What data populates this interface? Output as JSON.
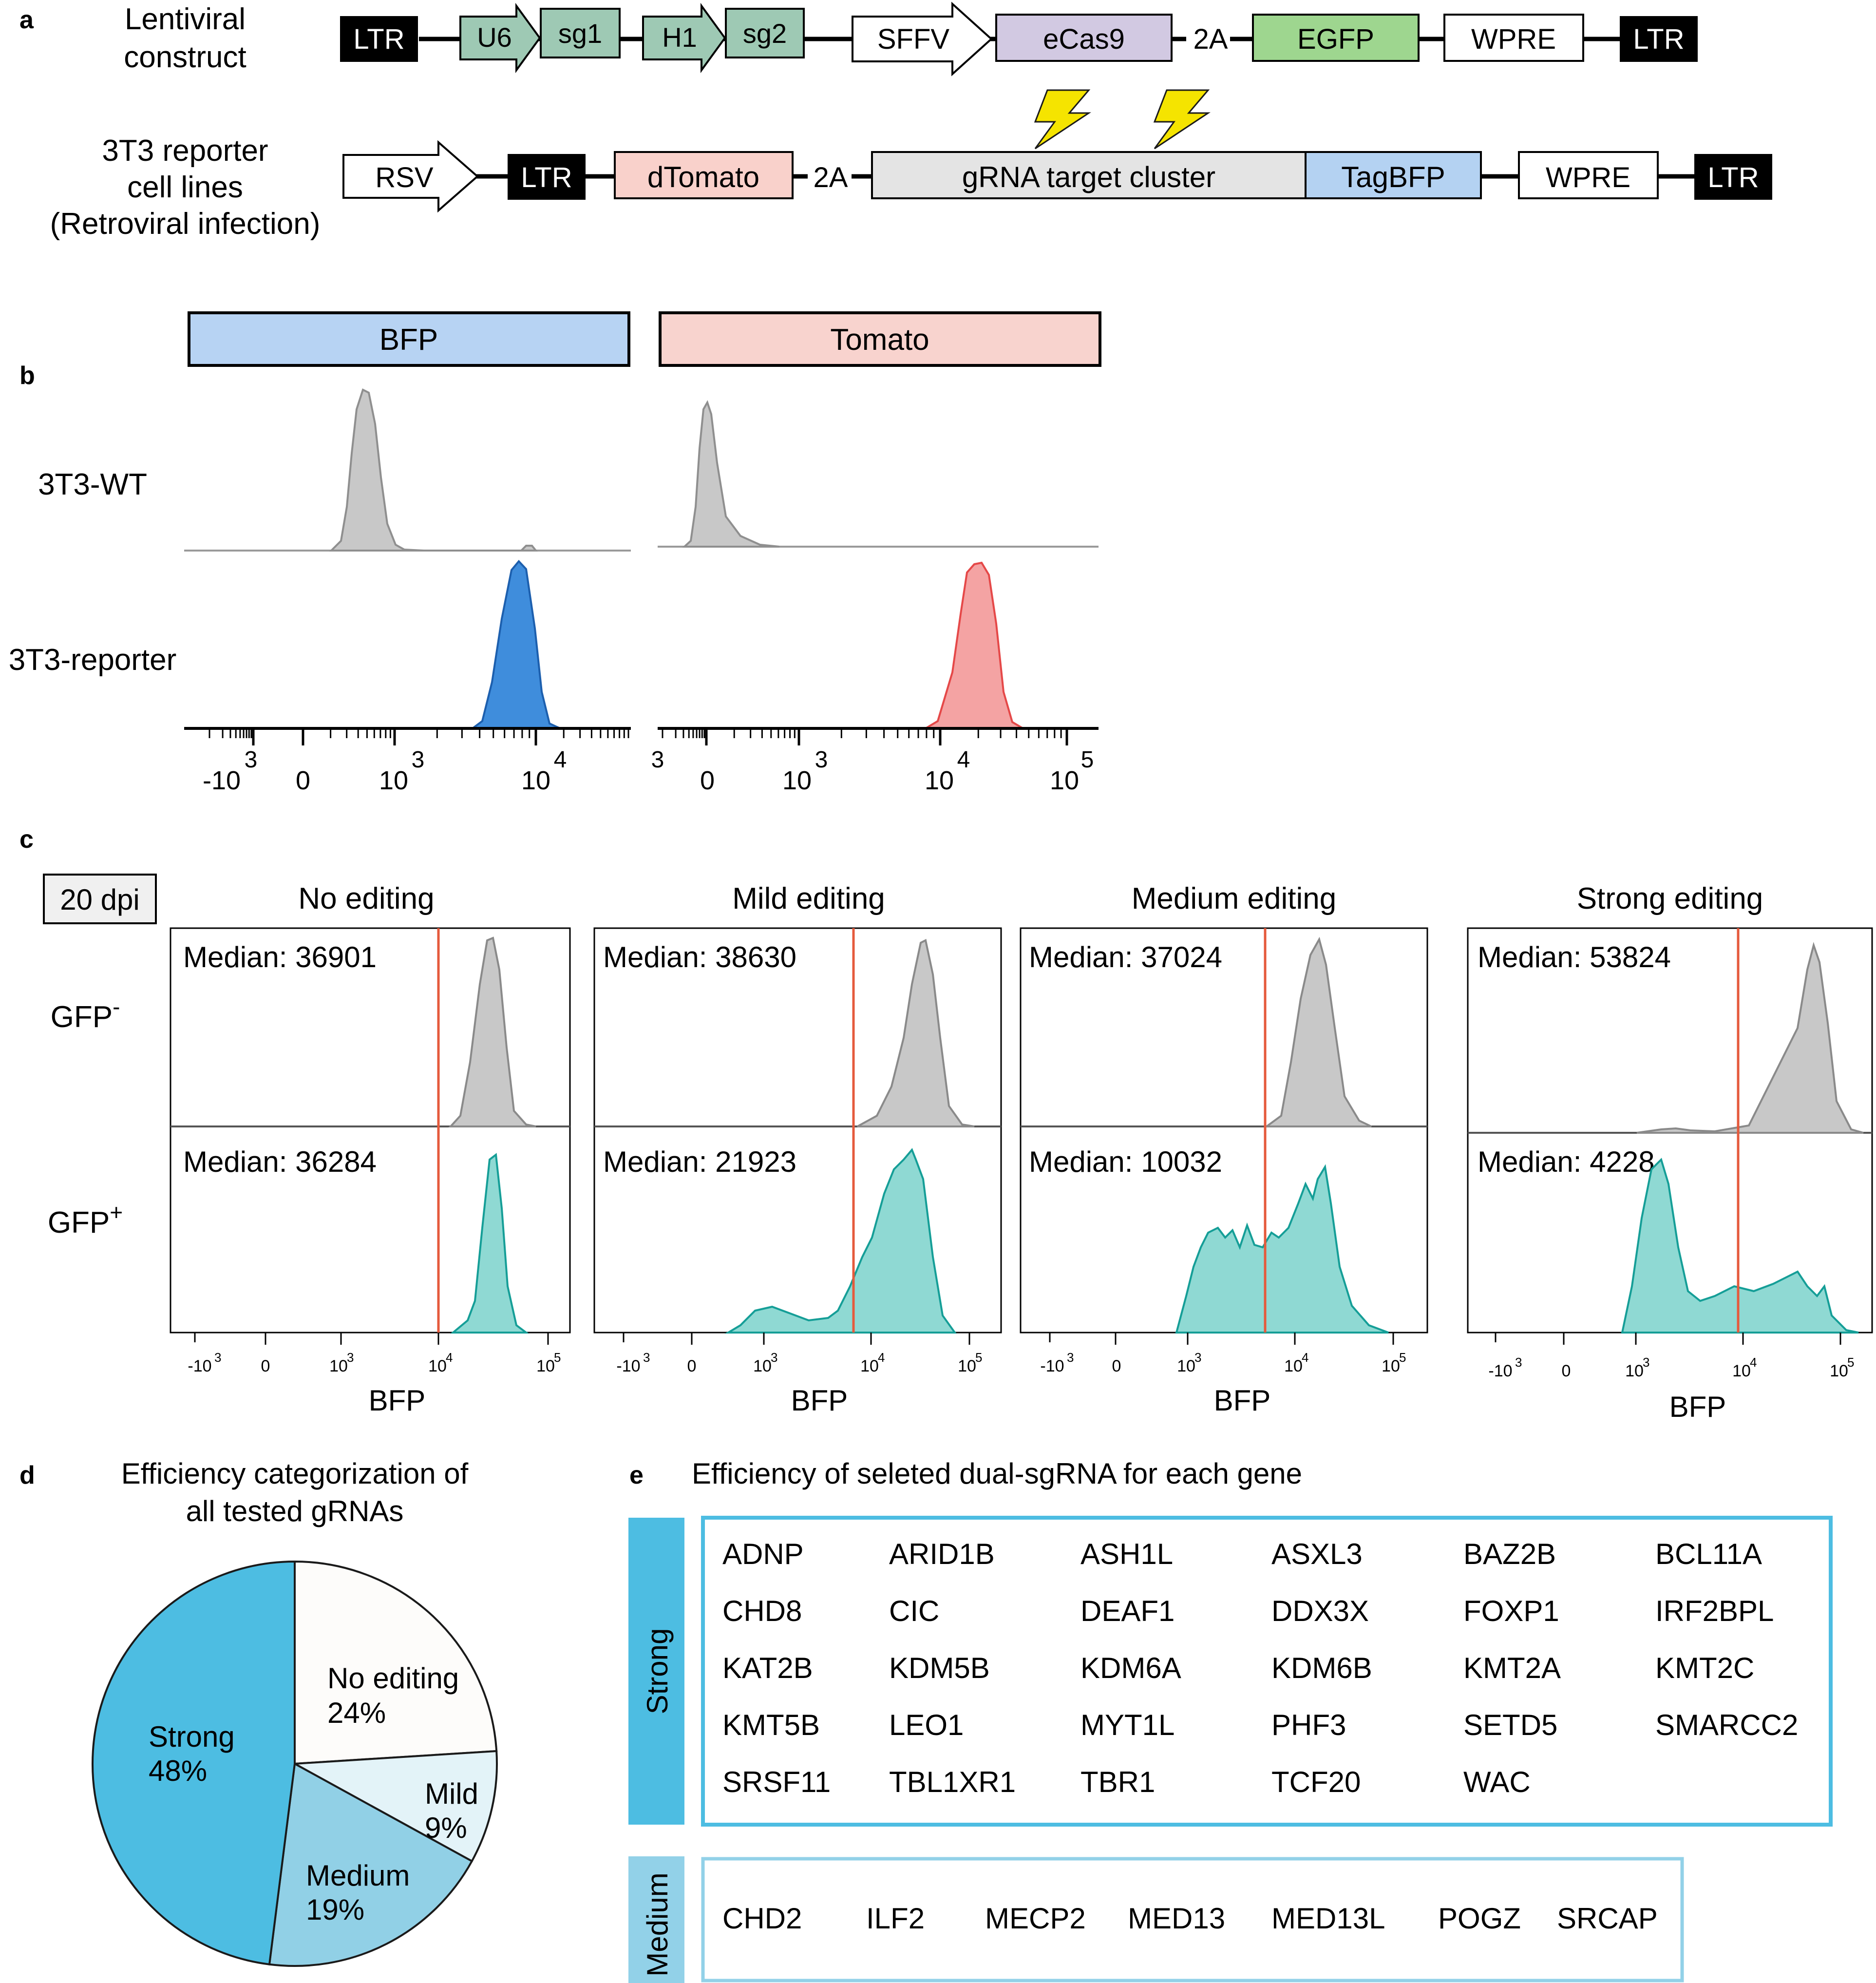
{
  "panel_a": {
    "label": "a",
    "row1": {
      "title": [
        "Lentiviral",
        "construct"
      ],
      "parts": [
        "LTR",
        "U6",
        "sg1",
        "H1",
        "sg2",
        "SFFV",
        "eCas9",
        "2A",
        "EGFP",
        "WPRE",
        "LTR"
      ]
    },
    "row2": {
      "title": [
        "3T3 reporter",
        "cell lines",
        "(Retroviral infection)"
      ],
      "parts": [
        "RSV",
        "LTR",
        "dTomato",
        "2A",
        "gRNA target cluster",
        "TagBFP",
        "WPRE",
        "LTR"
      ]
    },
    "colors": {
      "ltr": "#000000",
      "promoter_green": "#9ec9b4",
      "ecas9": "#d2c9e2",
      "egfp": "#9ed68f",
      "dtomato": "#f9d1cb",
      "gray_cluster": "#e4e4e4",
      "tagbfp": "#b4d2f2",
      "lightning": "#f5e400"
    }
  },
  "panel_b": {
    "label": "b",
    "headers": [
      "BFP",
      "Tomato"
    ],
    "header_colors": [
      "#b7d3f3",
      "#f8d3ce"
    ],
    "rows": [
      "3T3-WT",
      "3T3-reporter"
    ],
    "bfp_ticks": [
      {
        "base": "-10",
        "exp": "3"
      },
      {
        "base": "0",
        "exp": ""
      },
      {
        "base": "10",
        "exp": "3"
      },
      {
        "base": "10",
        "exp": "4"
      }
    ],
    "tomato_ticks": [
      {
        "base": "",
        "exp": "3"
      },
      {
        "base": "0",
        "exp": ""
      },
      {
        "base": "10",
        "exp": "3"
      },
      {
        "base": "10",
        "exp": "4"
      },
      {
        "base": "10",
        "exp": "5"
      }
    ],
    "colors": {
      "wt": "#c8c8c8",
      "bfp": "#3f8ddc",
      "tomato": "#f4a3a3"
    }
  },
  "panel_c": {
    "label": "c",
    "timepoint": "20 dpi",
    "row_labels": [
      {
        "text": "GFP",
        "sup": "-"
      },
      {
        "text": "GFP",
        "sup": "+"
      }
    ],
    "xlabel": "BFP",
    "ticks": [
      {
        "base": "-10",
        "exp": "3"
      },
      {
        "base": "0",
        "exp": ""
      },
      {
        "base": "10",
        "exp": "3"
      },
      {
        "base": "10",
        "exp": "4"
      },
      {
        "base": "10",
        "exp": "5"
      }
    ],
    "plots": [
      {
        "title": "No editing",
        "top_median": "Median: 36901",
        "bottom_median": "Median: 36284"
      },
      {
        "title": "Mild editing",
        "top_median": "Median: 38630",
        "bottom_median": "Median: 21923"
      },
      {
        "title": "Medium editing",
        "top_median": "Median: 37024",
        "bottom_median": "Median: 10032"
      },
      {
        "title": "Strong editing",
        "top_median": "Median: 53824",
        "bottom_median": "Median: 4228"
      }
    ],
    "colors": {
      "gfp_neg": "#c8c8c8",
      "gfp_pos": "#8fd9d3",
      "gfp_pos_line": "#159e97",
      "gate": "#e55a3c"
    }
  },
  "panel_d": {
    "label": "d",
    "title": [
      "Efficiency categorization of",
      "all tested gRNAs"
    ],
    "slices": [
      {
        "name": "No editing",
        "pct": "24%",
        "value": 24,
        "color": "#fdfcfa"
      },
      {
        "name": "Mild",
        "pct": "9%",
        "value": 9,
        "color": "#e3f3f8"
      },
      {
        "name": "Medium",
        "pct": "19%",
        "value": 19,
        "color": "#91d0e6"
      },
      {
        "name": "Strong",
        "pct": "48%",
        "value": 48,
        "color": "#4dbde2"
      }
    ]
  },
  "panel_e": {
    "label": "e",
    "title": "Efficiency of seleted dual-sgRNA for each gene",
    "strong": {
      "label": "Strong",
      "color": "#4dbde2",
      "genes": [
        "ADNP",
        "ARID1B",
        "ASH1L",
        "ASXL3",
        "BAZ2B",
        "BCL11A",
        "CHD8",
        "CIC",
        "DEAF1",
        "DDX3X",
        "FOXP1",
        "IRF2BPL",
        "KAT2B",
        "KDM5B",
        "KDM6A",
        "KDM6B",
        "KMT2A",
        "KMT2C",
        "KMT5B",
        "LEO1",
        "MYT1L",
        "PHF3",
        "SETD5",
        "SMARCC2",
        "SRSF11",
        "TBL1XR1",
        "TBR1",
        "TCF20",
        "WAC"
      ]
    },
    "medium": {
      "label": "Medium",
      "color": "#92d1e8",
      "genes": [
        "CHD2",
        "ILF2",
        "MECP2",
        "MED13",
        "MED13L",
        "POGZ",
        "SRCAP"
      ]
    }
  }
}
